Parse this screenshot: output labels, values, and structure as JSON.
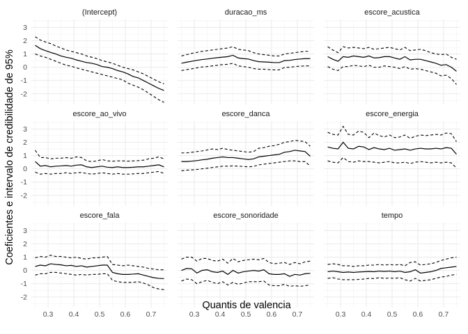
{
  "chart_data": {
    "type": "line",
    "xlabel": "Quantis de valencia",
    "ylabel": "Coeficientes e intervalo de credibilidade de 95%",
    "xlim": [
      0.235,
      0.765
    ],
    "ylim": [
      -2.8,
      3.6
    ],
    "x_ticks": [
      0.3,
      0.4,
      0.5,
      0.6,
      0.7
    ],
    "x_tick_labels": [
      "0.3",
      "0.4",
      "0.5",
      "0.6",
      "0.7"
    ],
    "y_ticks": [
      -2,
      -1,
      0,
      1,
      2,
      3
    ],
    "y_tick_labels": [
      "-2",
      "-1",
      "0",
      "1",
      "2",
      "3"
    ],
    "grid": true,
    "x": [
      0.25,
      0.27,
      0.29,
      0.31,
      0.33,
      0.35,
      0.37,
      0.39,
      0.41,
      0.43,
      0.45,
      0.47,
      0.49,
      0.51,
      0.53,
      0.55,
      0.57,
      0.59,
      0.61,
      0.63,
      0.65,
      0.67,
      0.69,
      0.71,
      0.73,
      0.75
    ],
    "panels": [
      {
        "title": "(Intercept)",
        "estimate": [
          1.65,
          1.4,
          1.25,
          1.12,
          1.0,
          0.85,
          0.75,
          0.68,
          0.55,
          0.45,
          0.35,
          0.3,
          0.2,
          0.05,
          0.0,
          -0.1,
          -0.25,
          -0.35,
          -0.5,
          -0.7,
          -0.8,
          -1.0,
          -1.2,
          -1.4,
          -1.6,
          -1.75
        ],
        "upper": [
          2.3,
          2.05,
          1.9,
          1.78,
          1.6,
          1.45,
          1.3,
          1.2,
          1.1,
          1.0,
          0.85,
          0.75,
          0.65,
          0.5,
          0.4,
          0.3,
          0.15,
          0.0,
          -0.1,
          -0.2,
          -0.35,
          -0.5,
          -0.7,
          -0.9,
          -1.1,
          -1.25
        ],
        "lower": [
          1.0,
          0.85,
          0.75,
          0.6,
          0.45,
          0.3,
          0.15,
          0.08,
          -0.05,
          -0.15,
          -0.25,
          -0.35,
          -0.45,
          -0.55,
          -0.65,
          -0.75,
          -0.85,
          -0.95,
          -1.2,
          -1.35,
          -1.5,
          -1.7,
          -1.95,
          -2.2,
          -2.45,
          -2.65
        ]
      },
      {
        "title": "duracao_ms",
        "estimate": [
          0.3,
          0.38,
          0.45,
          0.52,
          0.58,
          0.62,
          0.68,
          0.72,
          0.76,
          0.8,
          0.9,
          0.7,
          0.65,
          0.62,
          0.5,
          0.42,
          0.4,
          0.38,
          0.35,
          0.35,
          0.5,
          0.52,
          0.58,
          0.62,
          0.65,
          0.65
        ],
        "upper": [
          0.85,
          0.95,
          1.05,
          1.12,
          1.2,
          1.25,
          1.3,
          1.35,
          1.4,
          1.45,
          1.55,
          1.35,
          1.3,
          1.25,
          1.1,
          1.0,
          0.95,
          0.9,
          0.85,
          0.85,
          1.0,
          1.05,
          1.1,
          1.15,
          1.2,
          1.2
        ],
        "lower": [
          -0.25,
          -0.18,
          -0.12,
          -0.05,
          0.02,
          0.05,
          0.1,
          0.15,
          0.2,
          0.22,
          0.3,
          0.1,
          0.05,
          0.0,
          -0.1,
          -0.15,
          -0.15,
          -0.18,
          -0.2,
          -0.2,
          -0.02,
          0.0,
          0.05,
          0.08,
          0.1,
          0.1
        ]
      },
      {
        "title": "escore_acustica",
        "estimate": [
          0.8,
          0.6,
          0.45,
          0.8,
          0.75,
          0.85,
          0.8,
          0.75,
          0.85,
          0.7,
          0.72,
          0.8,
          0.8,
          0.7,
          0.6,
          0.8,
          0.55,
          0.6,
          0.6,
          0.5,
          0.4,
          0.3,
          0.15,
          0.2,
          0.0,
          -0.3
        ],
        "upper": [
          1.55,
          1.3,
          1.1,
          1.55,
          1.45,
          1.5,
          1.45,
          1.4,
          1.5,
          1.35,
          1.4,
          1.45,
          1.5,
          1.4,
          1.3,
          1.5,
          1.25,
          1.3,
          1.35,
          1.25,
          1.1,
          1.0,
          0.95,
          1.0,
          0.75,
          0.6
        ],
        "lower": [
          0.05,
          -0.15,
          -0.25,
          0.05,
          0.05,
          0.15,
          0.1,
          0.05,
          0.15,
          0.0,
          0.0,
          0.1,
          0.05,
          0.0,
          -0.1,
          0.05,
          -0.15,
          -0.1,
          -0.15,
          -0.25,
          -0.35,
          -0.45,
          -0.65,
          -0.6,
          -0.85,
          -1.3
        ]
      },
      {
        "title": "escore_ao_vivo",
        "estimate": [
          0.55,
          0.2,
          0.25,
          0.15,
          0.2,
          0.22,
          0.25,
          0.2,
          0.28,
          0.3,
          0.15,
          0.1,
          0.15,
          0.2,
          0.12,
          0.1,
          0.15,
          0.1,
          0.1,
          0.12,
          0.15,
          0.15,
          0.2,
          0.25,
          0.3,
          0.15
        ],
        "upper": [
          1.4,
          0.85,
          0.85,
          0.75,
          0.8,
          0.8,
          0.85,
          0.8,
          0.9,
          0.85,
          0.6,
          0.55,
          0.6,
          0.7,
          0.6,
          0.58,
          0.6,
          0.6,
          0.58,
          0.6,
          0.62,
          0.65,
          0.75,
          0.8,
          0.9,
          0.75
        ],
        "lower": [
          -0.25,
          -0.4,
          -0.35,
          -0.4,
          -0.35,
          -0.35,
          -0.3,
          -0.35,
          -0.3,
          -0.28,
          -0.35,
          -0.4,
          -0.35,
          -0.3,
          -0.35,
          -0.4,
          -0.35,
          -0.4,
          -0.4,
          -0.38,
          -0.35,
          -0.35,
          -0.3,
          -0.25,
          -0.2,
          -0.35
        ]
      },
      {
        "title": "escore_danca",
        "estimate": [
          0.55,
          0.55,
          0.58,
          0.62,
          0.68,
          0.72,
          0.8,
          0.85,
          0.9,
          0.85,
          0.85,
          0.8,
          0.75,
          0.7,
          0.75,
          0.9,
          0.95,
          1.0,
          1.05,
          1.1,
          1.25,
          1.3,
          1.4,
          1.35,
          1.3,
          0.95
        ],
        "upper": [
          1.2,
          1.2,
          1.25,
          1.3,
          1.35,
          1.42,
          1.5,
          1.45,
          1.55,
          1.45,
          1.4,
          1.35,
          1.3,
          1.25,
          1.3,
          1.55,
          1.6,
          1.7,
          1.75,
          1.85,
          2.0,
          2.05,
          2.15,
          2.1,
          2.05,
          1.7
        ],
        "lower": [
          -0.15,
          -0.1,
          -0.08,
          -0.05,
          0.0,
          0.05,
          0.1,
          0.15,
          0.2,
          0.2,
          0.22,
          0.2,
          0.18,
          0.15,
          0.18,
          0.3,
          0.35,
          0.4,
          0.45,
          0.5,
          0.55,
          0.6,
          0.6,
          0.55,
          0.55,
          0.2
        ]
      },
      {
        "title": "escore_energia",
        "estimate": [
          1.65,
          1.55,
          1.5,
          2.0,
          1.55,
          1.5,
          1.7,
          1.65,
          1.45,
          1.6,
          1.5,
          1.45,
          1.55,
          1.4,
          1.45,
          1.5,
          1.4,
          1.5,
          1.55,
          1.5,
          1.5,
          1.55,
          1.5,
          1.6,
          1.55,
          1.1
        ],
        "upper": [
          2.75,
          2.6,
          2.55,
          3.2,
          2.6,
          2.55,
          2.85,
          2.75,
          2.35,
          2.7,
          2.5,
          2.4,
          2.55,
          2.35,
          2.4,
          2.55,
          2.3,
          2.45,
          2.55,
          2.5,
          2.55,
          2.6,
          2.55,
          2.7,
          2.65,
          2.05
        ],
        "lower": [
          0.6,
          0.5,
          0.45,
          0.85,
          0.55,
          0.5,
          0.6,
          0.55,
          0.55,
          0.5,
          0.45,
          0.5,
          0.55,
          0.45,
          0.45,
          0.5,
          0.4,
          0.5,
          0.55,
          0.5,
          0.45,
          0.5,
          0.45,
          0.5,
          0.45,
          0.05
        ]
      },
      {
        "title": "escore_fala",
        "estimate": [
          0.3,
          0.4,
          0.35,
          0.5,
          0.45,
          0.42,
          0.35,
          0.38,
          0.3,
          0.35,
          0.25,
          0.3,
          0.35,
          0.4,
          0.4,
          -0.15,
          -0.25,
          -0.3,
          -0.3,
          -0.28,
          -0.25,
          -0.35,
          -0.45,
          -0.55,
          -0.6,
          -0.62
        ],
        "upper": [
          0.95,
          1.05,
          1.0,
          1.15,
          1.05,
          1.05,
          1.0,
          0.95,
          1.0,
          0.9,
          0.85,
          0.95,
          0.95,
          1.0,
          1.05,
          0.45,
          0.4,
          0.35,
          0.4,
          0.35,
          0.3,
          0.25,
          0.15,
          0.1,
          0.05,
          0.05
        ],
        "lower": [
          -0.35,
          -0.25,
          -0.25,
          -0.15,
          -0.15,
          -0.2,
          -0.25,
          -0.3,
          -0.35,
          -0.3,
          -0.35,
          -0.3,
          -0.3,
          -0.25,
          -0.25,
          -0.75,
          -0.85,
          -0.9,
          -0.9,
          -0.9,
          -0.85,
          -0.95,
          -1.1,
          -1.3,
          -1.4,
          -1.45
        ]
      },
      {
        "title": "escore_sonoridade",
        "estimate": [
          0.0,
          0.15,
          0.12,
          -0.2,
          0.0,
          0.05,
          -0.1,
          -0.15,
          -0.05,
          -0.3,
          0.0,
          -0.2,
          -0.1,
          -0.05,
          0.0,
          -0.05,
          0.05,
          -0.25,
          -0.3,
          -0.3,
          -0.25,
          -0.45,
          -0.3,
          -0.35,
          -0.25,
          -0.22
        ],
        "upper": [
          0.85,
          1.0,
          1.0,
          0.7,
          0.9,
          0.9,
          0.75,
          0.7,
          0.85,
          0.55,
          0.9,
          0.65,
          0.75,
          0.8,
          0.85,
          0.8,
          0.9,
          0.6,
          0.5,
          0.55,
          0.6,
          0.45,
          0.6,
          0.5,
          0.65,
          0.7
        ],
        "lower": [
          -0.8,
          -0.65,
          -0.7,
          -1.0,
          -0.85,
          -0.75,
          -0.9,
          -1.0,
          -0.85,
          -1.1,
          -0.9,
          -1.05,
          -0.95,
          -0.85,
          -0.85,
          -0.85,
          -0.8,
          -1.1,
          -1.15,
          -1.15,
          -1.05,
          -1.2,
          -1.15,
          -1.2,
          -1.15,
          -1.1
        ]
      },
      {
        "title": "tempo",
        "estimate": [
          -0.1,
          -0.05,
          -0.1,
          -0.15,
          -0.12,
          -0.15,
          -0.12,
          -0.1,
          -0.08,
          -0.1,
          -0.05,
          -0.08,
          -0.05,
          -0.1,
          -0.05,
          -0.15,
          -0.1,
          0.05,
          -0.2,
          -0.15,
          -0.1,
          0.0,
          0.15,
          0.2,
          0.25,
          0.3
        ],
        "upper": [
          0.45,
          0.5,
          0.45,
          0.35,
          0.35,
          0.3,
          0.35,
          0.35,
          0.4,
          0.4,
          0.45,
          0.4,
          0.45,
          0.4,
          0.45,
          0.35,
          0.6,
          0.65,
          0.4,
          0.45,
          0.5,
          0.6,
          0.75,
          0.85,
          0.95,
          1.0
        ],
        "lower": [
          -0.6,
          -0.55,
          -0.65,
          -0.7,
          -0.7,
          -0.7,
          -0.68,
          -0.65,
          -0.6,
          -0.62,
          -0.55,
          -0.6,
          -0.58,
          -0.6,
          -0.55,
          -0.7,
          -0.8,
          -0.6,
          -0.8,
          -0.75,
          -0.7,
          -0.6,
          -0.5,
          -0.45,
          -0.35,
          -0.3
        ]
      }
    ]
  }
}
